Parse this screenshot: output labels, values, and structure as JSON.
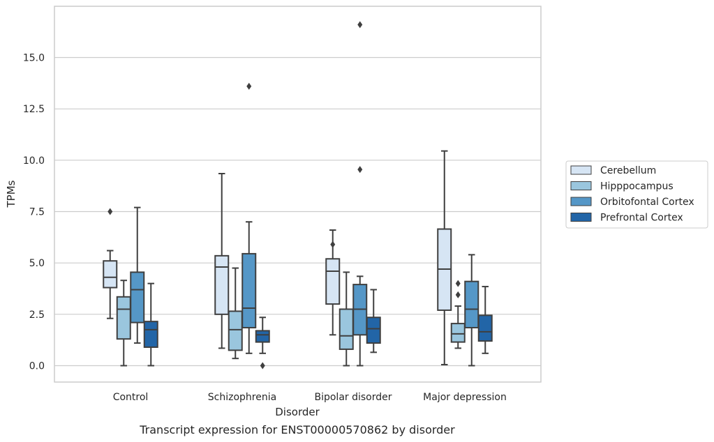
{
  "chart_data": {
    "type": "box",
    "xlabel": "Disorder",
    "ylabel": "TPMs",
    "caption": "Transcript expression for ENST00000570862 by disorder",
    "ylim": [
      -0.8,
      17.8
    ],
    "yticks": [
      "0.0",
      "2.5",
      "5.0",
      "7.5",
      "10.0",
      "12.5",
      "15.0"
    ],
    "yticks_values": [
      0,
      2.5,
      5,
      7.5,
      10,
      12.5,
      15
    ],
    "grid": true,
    "legend_position": "right",
    "categories": [
      "Control",
      "Schizophrenia",
      "Bipolar disorder",
      "Major depression"
    ],
    "series": [
      {
        "name": "Cerebellum",
        "color": "#d6e5f4",
        "boxes": [
          {
            "whisker_low": 2.3,
            "q1": 3.8,
            "median": 4.3,
            "q3": 5.1,
            "whisker_high": 5.6,
            "outliers": [
              7.5
            ]
          },
          {
            "whisker_low": 0.85,
            "q1": 2.5,
            "median": 4.8,
            "q3": 5.35,
            "whisker_high": 9.35,
            "outliers": []
          },
          {
            "whisker_low": 1.5,
            "q1": 3.0,
            "median": 4.6,
            "q3": 5.2,
            "whisker_high": 6.6,
            "outliers": [
              5.9
            ]
          },
          {
            "whisker_low": 0.05,
            "q1": 2.7,
            "median": 4.7,
            "q3": 6.65,
            "whisker_high": 10.45,
            "outliers": []
          }
        ]
      },
      {
        "name": "Hipppocampus",
        "color": "#9ac6de",
        "boxes": [
          {
            "whisker_low": 0.0,
            "q1": 1.3,
            "median": 2.75,
            "q3": 3.35,
            "whisker_high": 4.15,
            "outliers": []
          },
          {
            "whisker_low": 0.35,
            "q1": 0.75,
            "median": 1.75,
            "q3": 2.65,
            "whisker_high": 4.75,
            "outliers": []
          },
          {
            "whisker_low": 0.0,
            "q1": 0.8,
            "median": 1.45,
            "q3": 2.75,
            "whisker_high": 4.55,
            "outliers": []
          },
          {
            "whisker_low": 0.85,
            "q1": 1.15,
            "median": 1.55,
            "q3": 2.05,
            "whisker_high": 2.9,
            "outliers": [
              3.45,
              4.0
            ]
          }
        ]
      },
      {
        "name": "Orbitofontal Cortex",
        "color": "#5597c7",
        "boxes": [
          {
            "whisker_low": 1.1,
            "q1": 2.1,
            "median": 3.7,
            "q3": 4.55,
            "whisker_high": 7.7,
            "outliers": []
          },
          {
            "whisker_low": 0.6,
            "q1": 1.85,
            "median": 2.8,
            "q3": 5.45,
            "whisker_high": 7.0,
            "outliers": [
              13.6
            ]
          },
          {
            "whisker_low": 0.0,
            "q1": 1.5,
            "median": 2.75,
            "q3": 3.95,
            "whisker_high": 4.35,
            "outliers": [
              9.55,
              16.6
            ]
          },
          {
            "whisker_low": 0.0,
            "q1": 1.85,
            "median": 2.75,
            "q3": 4.1,
            "whisker_high": 5.4,
            "outliers": []
          }
        ]
      },
      {
        "name": "Prefrontal Cortex",
        "color": "#2265a7",
        "boxes": [
          {
            "whisker_low": 0.0,
            "q1": 0.9,
            "median": 1.75,
            "q3": 2.15,
            "whisker_high": 4.0,
            "outliers": []
          },
          {
            "whisker_low": 0.6,
            "q1": 1.15,
            "median": 1.5,
            "q3": 1.7,
            "whisker_high": 2.35,
            "outliers": [
              0.0
            ]
          },
          {
            "whisker_low": 0.65,
            "q1": 1.1,
            "median": 1.8,
            "q3": 2.35,
            "whisker_high": 3.7,
            "outliers": []
          },
          {
            "whisker_low": 0.6,
            "q1": 1.2,
            "median": 1.65,
            "q3": 2.45,
            "whisker_high": 3.85,
            "outliers": []
          }
        ]
      }
    ]
  }
}
